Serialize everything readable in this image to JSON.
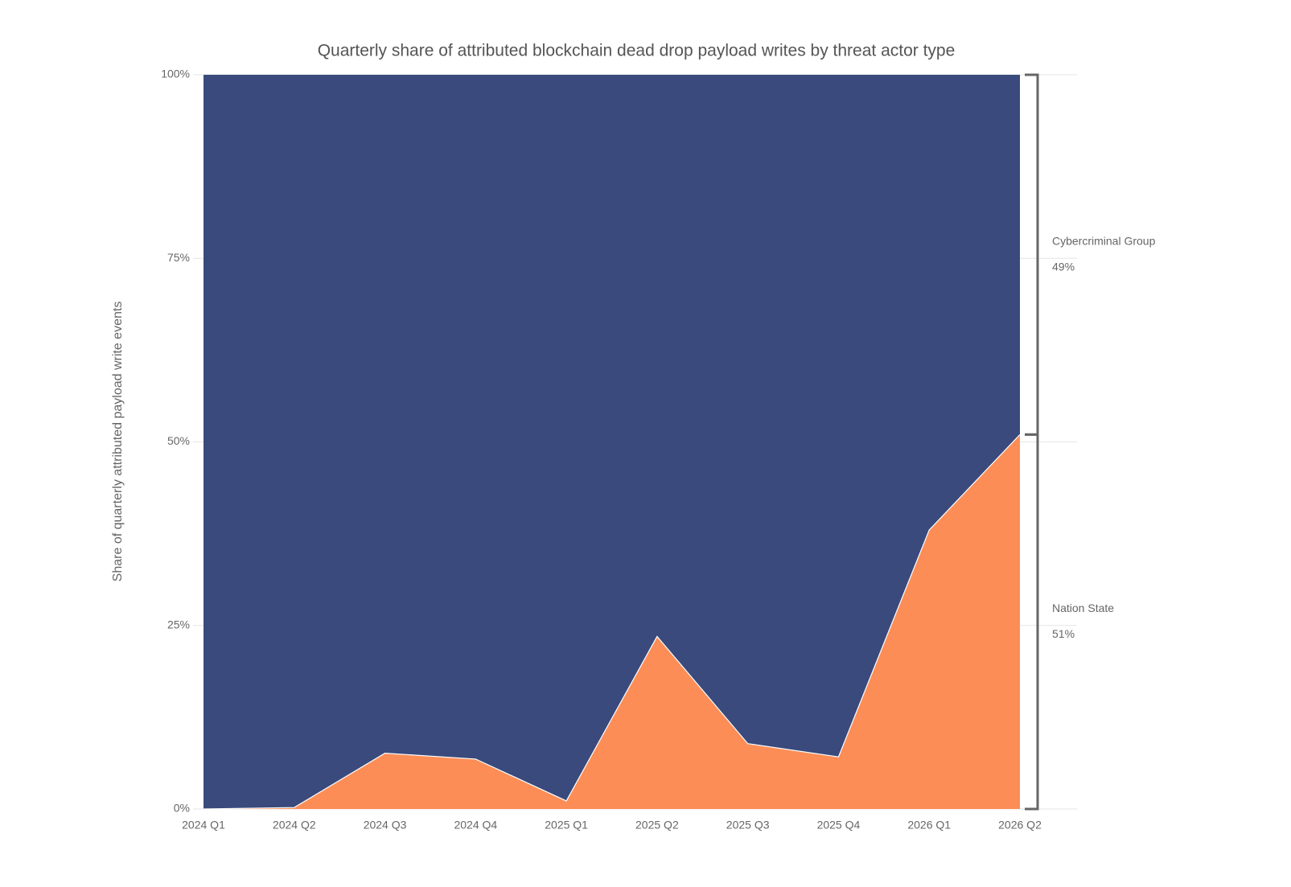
{
  "chart_data": {
    "type": "stacked_area",
    "title": "Quarterly share of attributed blockchain dead drop payload writes by threat actor type",
    "y_label": "Share of quarterly attributed payload write events",
    "categories": [
      "2024 Q1",
      "2024 Q2",
      "2024 Q3",
      "2024 Q4",
      "2025 Q1",
      "2025 Q2",
      "2025 Q3",
      "2025 Q4",
      "2026 Q1",
      "2026 Q2"
    ],
    "series": [
      {
        "name": "Nation State",
        "color": "#fd8d56",
        "values": [
          0,
          0.2,
          7.6,
          6.8,
          1.1,
          23.5,
          8.9,
          7.1,
          38,
          51
        ],
        "value_labels": [
          null,
          null,
          null,
          null,
          null,
          null,
          null,
          null,
          null,
          "51%"
        ]
      },
      {
        "name": "Cybercriminal Group",
        "color": "#3a4a7c",
        "values": [
          100,
          99.8,
          92.4,
          93.2,
          98.9,
          76.5,
          91.1,
          92.9,
          62,
          49
        ],
        "value_labels": [
          null,
          null,
          null,
          null,
          null,
          null,
          null,
          null,
          null,
          "49%"
        ]
      }
    ],
    "ylim": [
      0,
      100
    ],
    "yticks": [
      {
        "value": 0,
        "label": "0%"
      },
      {
        "value": 25,
        "label": "25%"
      },
      {
        "value": 50,
        "label": "50%"
      },
      {
        "value": 75,
        "label": "75%"
      },
      {
        "value": 100,
        "label": "100%"
      }
    ],
    "grid": true
  }
}
